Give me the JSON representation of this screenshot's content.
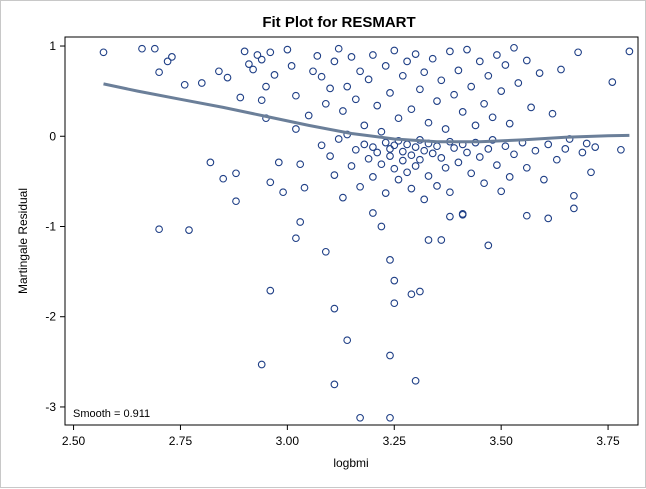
{
  "chart_data": {
    "type": "scatter",
    "title": "Fit Plot for RESMART",
    "xlabel": "logbmi",
    "ylabel": "Martingale Residual",
    "xlim": [
      2.48,
      3.82
    ],
    "ylim": [
      -3.2,
      1.1
    ],
    "x_ticks": [
      "2.50",
      "2.75",
      "3.00",
      "3.25",
      "3.50",
      "3.75"
    ],
    "x_tick_values": [
      2.5,
      2.75,
      3.0,
      3.25,
      3.5,
      3.75
    ],
    "y_ticks": [
      "1",
      "0",
      "-1",
      "-2",
      "-3"
    ],
    "y_tick_values": [
      1,
      0,
      -1,
      -2,
      -3
    ],
    "grid": false,
    "inset_label": "Smooth = 0.911",
    "colors": {
      "points": "#1f3f86",
      "smooth_line": "#6b7f99"
    },
    "series": [
      {
        "kind": "scatter",
        "points": [
          [
            2.57,
            0.93
          ],
          [
            2.66,
            0.97
          ],
          [
            2.69,
            0.97
          ],
          [
            2.7,
            0.71
          ],
          [
            2.72,
            0.83
          ],
          [
            2.73,
            0.88
          ],
          [
            2.76,
            0.57
          ],
          [
            2.8,
            0.59
          ],
          [
            2.82,
            -0.29
          ],
          [
            2.84,
            0.72
          ],
          [
            2.85,
            -0.47
          ],
          [
            2.86,
            0.65
          ],
          [
            2.88,
            -0.41
          ],
          [
            2.88,
            -0.72
          ],
          [
            2.89,
            0.43
          ],
          [
            2.9,
            0.94
          ],
          [
            2.91,
            0.8
          ],
          [
            2.92,
            0.74
          ],
          [
            2.93,
            0.9
          ],
          [
            2.94,
            0.85
          ],
          [
            2.94,
            0.4
          ],
          [
            2.95,
            0.2
          ],
          [
            2.95,
            0.55
          ],
          [
            2.96,
            0.93
          ],
          [
            2.96,
            -0.51
          ],
          [
            2.97,
            0.68
          ],
          [
            2.98,
            -0.29
          ],
          [
            2.99,
            -0.62
          ],
          [
            3.0,
            0.96
          ],
          [
            3.01,
            0.78
          ],
          [
            3.02,
            0.45
          ],
          [
            3.02,
            0.08
          ],
          [
            3.03,
            -0.31
          ],
          [
            3.04,
            -0.57
          ],
          [
            3.05,
            0.23
          ],
          [
            3.06,
            0.72
          ],
          [
            3.07,
            0.89
          ],
          [
            3.08,
            0.66
          ],
          [
            3.08,
            -0.1
          ],
          [
            3.09,
            0.36
          ],
          [
            3.1,
            0.53
          ],
          [
            3.1,
            -0.22
          ],
          [
            3.11,
            0.83
          ],
          [
            3.11,
            -0.43
          ],
          [
            3.12,
            0.97
          ],
          [
            3.12,
            -0.03
          ],
          [
            3.13,
            0.28
          ],
          [
            3.13,
            -0.68
          ],
          [
            3.14,
            0.55
          ],
          [
            3.14,
            0.02
          ],
          [
            3.15,
            -0.33
          ],
          [
            3.15,
            0.88
          ],
          [
            3.16,
            0.41
          ],
          [
            3.16,
            -0.15
          ],
          [
            3.17,
            0.72
          ],
          [
            3.17,
            -0.56
          ],
          [
            3.18,
            0.12
          ],
          [
            3.18,
            -0.09
          ],
          [
            3.19,
            0.63
          ],
          [
            3.19,
            -0.25
          ],
          [
            3.2,
            0.9
          ],
          [
            3.2,
            -0.12
          ],
          [
            3.2,
            -0.45
          ],
          [
            3.21,
            0.34
          ],
          [
            3.21,
            -0.18
          ],
          [
            3.22,
            0.05
          ],
          [
            3.22,
            -0.31
          ],
          [
            3.23,
            0.78
          ],
          [
            3.23,
            -0.07
          ],
          [
            3.23,
            -0.63
          ],
          [
            3.24,
            0.48
          ],
          [
            3.24,
            -0.14
          ],
          [
            3.24,
            -0.22
          ],
          [
            3.25,
            0.95
          ],
          [
            3.25,
            -0.1
          ],
          [
            3.25,
            -0.36
          ],
          [
            3.26,
            0.2
          ],
          [
            3.26,
            -0.05
          ],
          [
            3.26,
            -0.48
          ],
          [
            3.27,
            0.67
          ],
          [
            3.27,
            -0.17
          ],
          [
            3.27,
            -0.27
          ],
          [
            3.28,
            0.83
          ],
          [
            3.28,
            -0.09
          ],
          [
            3.28,
            -0.4
          ],
          [
            3.29,
            0.3
          ],
          [
            3.29,
            -0.21
          ],
          [
            3.29,
            -0.58
          ],
          [
            3.3,
            0.91
          ],
          [
            3.3,
            -0.12
          ],
          [
            3.3,
            -0.33
          ],
          [
            3.31,
            0.52
          ],
          [
            3.31,
            -0.04
          ],
          [
            3.31,
            -0.26
          ],
          [
            3.32,
            0.71
          ],
          [
            3.32,
            -0.16
          ],
          [
            3.32,
            -0.7
          ],
          [
            3.33,
            0.15
          ],
          [
            3.33,
            -0.08
          ],
          [
            3.33,
            -0.44
          ],
          [
            3.34,
            0.86
          ],
          [
            3.34,
            -0.19
          ],
          [
            3.35,
            0.39
          ],
          [
            3.35,
            -0.11
          ],
          [
            3.35,
            -0.55
          ],
          [
            3.36,
            0.62
          ],
          [
            3.36,
            -0.24
          ],
          [
            3.37,
            0.08
          ],
          [
            3.37,
            -0.35
          ],
          [
            3.38,
            0.94
          ],
          [
            3.38,
            -0.06
          ],
          [
            3.38,
            -0.62
          ],
          [
            3.39,
            0.46
          ],
          [
            3.39,
            -0.13
          ],
          [
            3.4,
            0.73
          ],
          [
            3.4,
            -0.29
          ],
          [
            3.41,
            0.27
          ],
          [
            3.41,
            -0.09
          ],
          [
            3.41,
            -0.86
          ],
          [
            3.42,
            0.96
          ],
          [
            3.42,
            -0.18
          ],
          [
            3.43,
            0.55
          ],
          [
            3.43,
            -0.41
          ],
          [
            3.44,
            0.12
          ],
          [
            3.44,
            -0.07
          ],
          [
            3.45,
            0.83
          ],
          [
            3.45,
            -0.23
          ],
          [
            3.46,
            0.36
          ],
          [
            3.46,
            -0.52
          ],
          [
            3.47,
            0.67
          ],
          [
            3.47,
            -0.14
          ],
          [
            3.48,
            0.21
          ],
          [
            3.48,
            -0.04
          ],
          [
            3.49,
            0.9
          ],
          [
            3.49,
            -0.32
          ],
          [
            3.5,
            0.5
          ],
          [
            3.5,
            -0.61
          ],
          [
            3.51,
            0.79
          ],
          [
            3.51,
            -0.11
          ],
          [
            3.52,
            0.14
          ],
          [
            3.52,
            -0.45
          ],
          [
            3.53,
            0.98
          ],
          [
            3.53,
            -0.2
          ],
          [
            3.54,
            0.59
          ],
          [
            3.55,
            -0.07
          ],
          [
            3.56,
            0.84
          ],
          [
            3.56,
            -0.35
          ],
          [
            3.57,
            0.32
          ],
          [
            3.58,
            -0.16
          ],
          [
            3.59,
            0.7
          ],
          [
            3.6,
            -0.48
          ],
          [
            3.61,
            -0.09
          ],
          [
            3.62,
            0.25
          ],
          [
            3.63,
            -0.26
          ],
          [
            3.64,
            0.74
          ],
          [
            3.65,
            -0.14
          ],
          [
            3.66,
            -0.03
          ],
          [
            3.67,
            -0.66
          ],
          [
            3.68,
            0.93
          ],
          [
            3.69,
            -0.18
          ],
          [
            3.7,
            -0.08
          ],
          [
            3.71,
            -0.4
          ],
          [
            3.72,
            -0.12
          ],
          [
            3.76,
            0.6
          ],
          [
            3.78,
            -0.15
          ],
          [
            3.8,
            0.94
          ],
          [
            2.7,
            -1.03
          ],
          [
            2.77,
            -1.04
          ],
          [
            2.94,
            -2.53
          ],
          [
            2.96,
            -1.71
          ],
          [
            3.02,
            -1.13
          ],
          [
            3.03,
            -0.95
          ],
          [
            3.09,
            -1.28
          ],
          [
            3.11,
            -1.91
          ],
          [
            3.11,
            -2.75
          ],
          [
            3.14,
            -2.26
          ],
          [
            3.17,
            -3.12
          ],
          [
            3.2,
            -0.85
          ],
          [
            3.22,
            -1.0
          ],
          [
            3.24,
            -1.37
          ],
          [
            3.24,
            -2.43
          ],
          [
            3.24,
            -3.12
          ],
          [
            3.25,
            -1.6
          ],
          [
            3.25,
            -1.85
          ],
          [
            3.29,
            -1.75
          ],
          [
            3.3,
            -2.71
          ],
          [
            3.31,
            -1.72
          ],
          [
            3.33,
            -1.15
          ],
          [
            3.36,
            -1.15
          ],
          [
            3.38,
            -0.89
          ],
          [
            3.41,
            -0.87
          ],
          [
            3.47,
            -1.21
          ],
          [
            3.56,
            -0.88
          ],
          [
            3.61,
            -0.91
          ],
          [
            3.67,
            -0.8
          ]
        ]
      },
      {
        "kind": "smooth",
        "points": [
          [
            2.57,
            0.58
          ],
          [
            2.65,
            0.5
          ],
          [
            2.75,
            0.41
          ],
          [
            2.85,
            0.32
          ],
          [
            2.95,
            0.22
          ],
          [
            3.05,
            0.12
          ],
          [
            3.15,
            0.03
          ],
          [
            3.25,
            -0.03
          ],
          [
            3.35,
            -0.06
          ],
          [
            3.45,
            -0.06
          ],
          [
            3.55,
            -0.04
          ],
          [
            3.65,
            -0.01
          ],
          [
            3.75,
            0.005
          ],
          [
            3.8,
            0.01
          ]
        ]
      }
    ]
  }
}
